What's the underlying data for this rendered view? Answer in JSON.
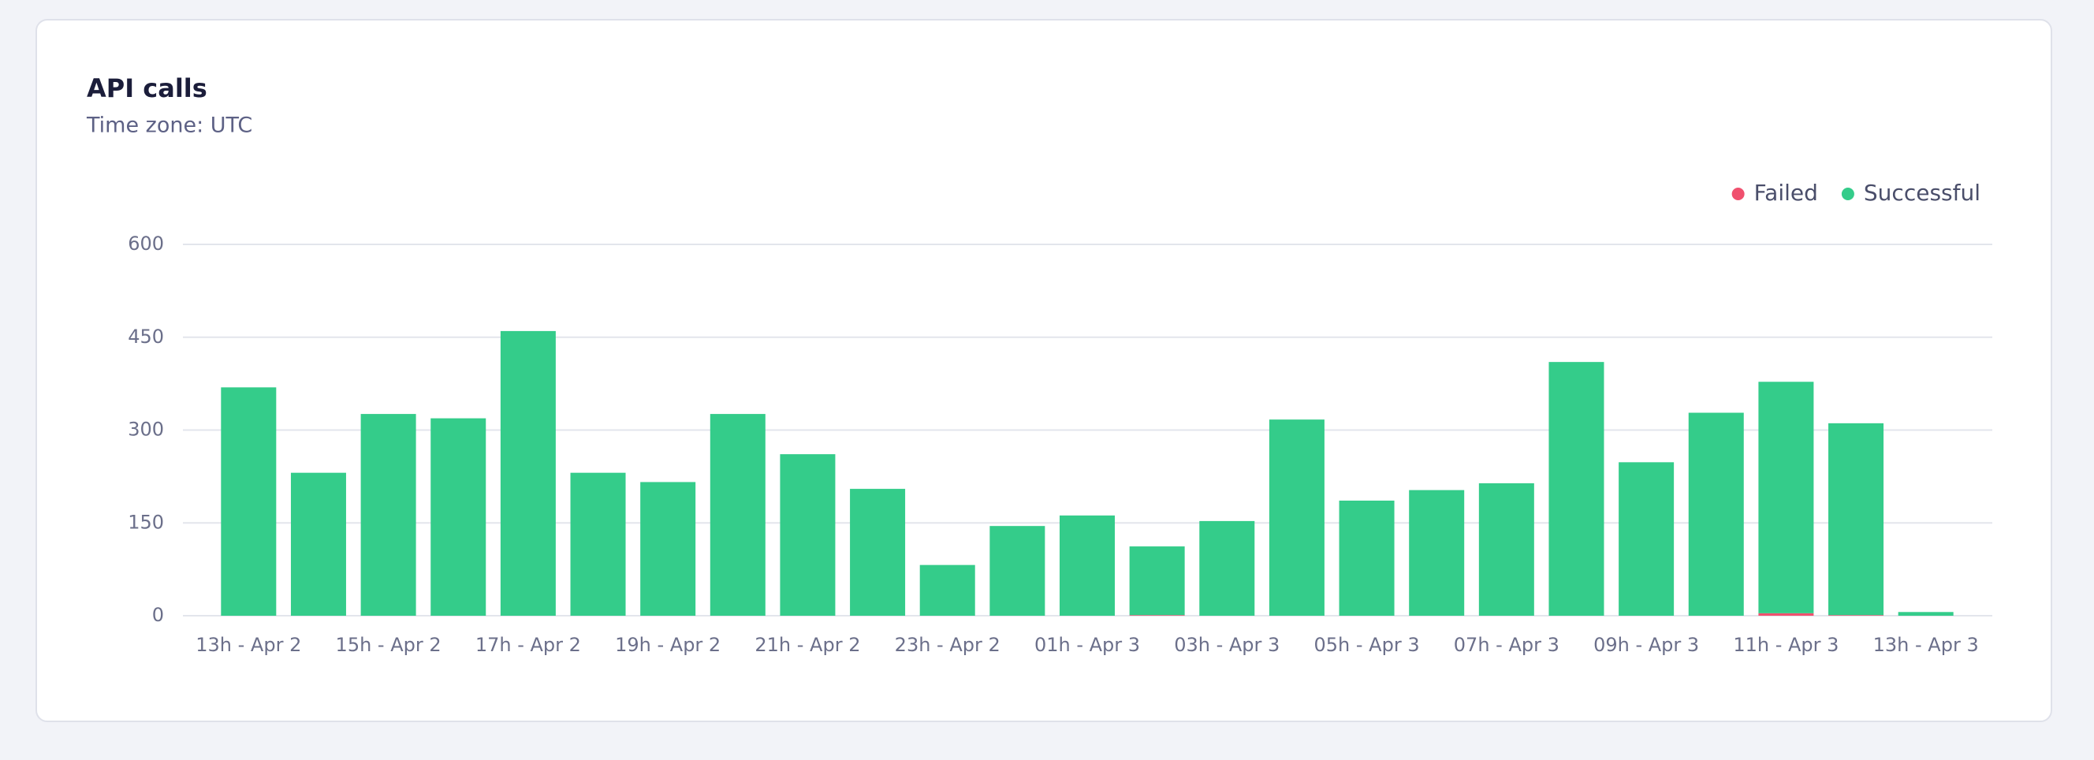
{
  "chart_data": {
    "type": "bar",
    "stacked": true,
    "title": "API calls",
    "subtitle": "Time zone: UTC",
    "categories": [
      "13h - Apr 2",
      null,
      "15h - Apr 2",
      null,
      "17h - Apr 2",
      null,
      "19h - Apr 2",
      null,
      "21h - Apr 2",
      null,
      "23h - Apr 2",
      null,
      "01h - Apr 3",
      null,
      "03h - Apr 3",
      null,
      "05h - Apr 3",
      null,
      "07h - Apr 3",
      null,
      "09h - Apr 3",
      null,
      "11h - Apr 3",
      null,
      "13h - Apr 3"
    ],
    "series": [
      {
        "name": "Failed",
        "color": "#f0506e",
        "values": [
          0,
          0,
          0,
          0,
          0,
          0,
          0,
          0,
          0,
          0,
          0,
          0,
          0,
          1,
          0,
          0,
          0,
          0,
          0,
          0,
          0,
          0,
          4,
          1,
          0
        ]
      },
      {
        "name": "Successful",
        "color": "#34cc8a",
        "values": [
          369,
          231,
          326,
          319,
          460,
          231,
          216,
          326,
          261,
          205,
          82,
          145,
          162,
          111,
          153,
          317,
          186,
          203,
          214,
          410,
          248,
          328,
          374,
          310,
          6
        ]
      }
    ],
    "ylim": [
      0,
      600
    ],
    "yticks": [
      0,
      150,
      300,
      450,
      600
    ],
    "grid": true,
    "legend": "top-right"
  }
}
